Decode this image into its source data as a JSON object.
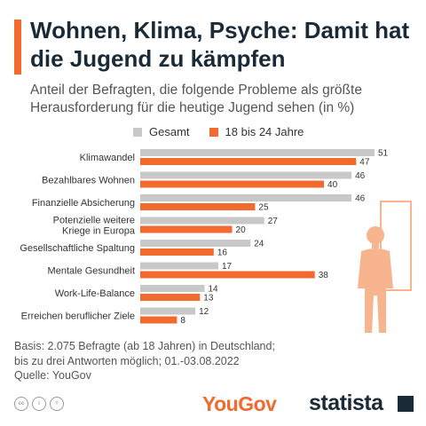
{
  "header": {
    "title": "Wohnen, Klima, Psyche: Damit hat die Jugend zu kämpfen",
    "subtitle": "Anteil der Befragten, die folgende Probleme als größte Herausforderung für die heutige Jugend sehen (in %)"
  },
  "legend": {
    "gesamt": "Gesamt",
    "jugend": "18 bis 24 Jahre"
  },
  "colors": {
    "accent": "#f26a2e",
    "gesamt": "#c8c8c8",
    "jugend": "#f26a2e",
    "dark": "#1a2a36"
  },
  "chart_data": {
    "type": "bar",
    "orientation": "horizontal",
    "categories": [
      "Klimawandel",
      "Bezahlbares Wohnen",
      "Finanzielle Absicherung",
      "Potenzielle weitere Kriege in Europa",
      "Gesellschaftliche Spaltung",
      "Mentale Gesundheit",
      "Work-Life-Balance",
      "Erreichen beruflicher Ziele"
    ],
    "category_lines": [
      [
        "Klimawandel"
      ],
      [
        "Bezahlbares Wohnen"
      ],
      [
        "Finanzielle Absicherung"
      ],
      [
        "Potenzielle weitere",
        "Kriege in Europa"
      ],
      [
        "Gesellschaftliche Spaltung"
      ],
      [
        "Mentale Gesundheit"
      ],
      [
        "Work-Life-Balance"
      ],
      [
        "Erreichen beruflicher Ziele"
      ]
    ],
    "series": [
      {
        "name": "Gesamt",
        "values": [
          51,
          46,
          46,
          27,
          24,
          17,
          14,
          12
        ]
      },
      {
        "name": "18 bis 24 Jahre",
        "values": [
          47,
          40,
          25,
          20,
          16,
          38,
          13,
          8
        ]
      }
    ],
    "xlim": [
      0,
      51
    ],
    "grid": false,
    "legend_position": "top"
  },
  "footer": {
    "basis_line1": "Basis: 2.075 Befragte (ab 18 Jahren) in Deutschland;",
    "basis_line2": "bis zu drei Antworten möglich; 01.-03.08.2022",
    "source": "Quelle: YouGov",
    "yougov_logo": "YouGov",
    "statista_logo": "statista"
  }
}
